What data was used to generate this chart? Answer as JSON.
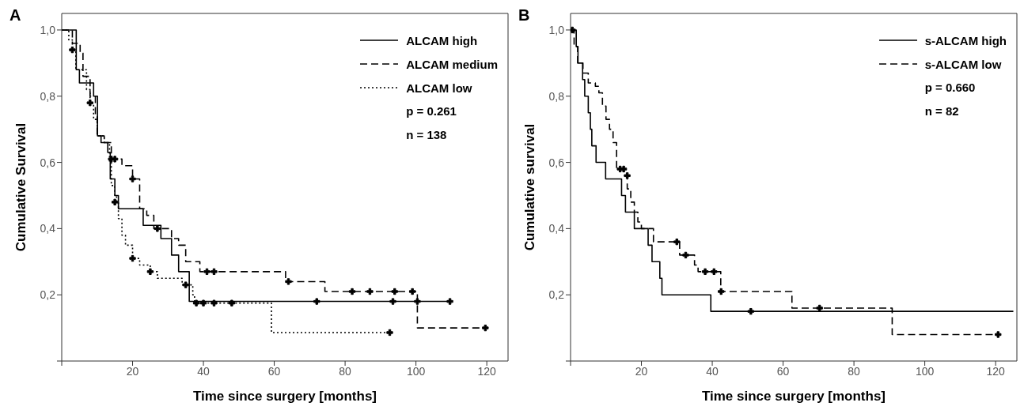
{
  "chart_data": [
    {
      "type": "step",
      "title": "A",
      "xlabel": "Time since surgery [months]",
      "ylabel": "Cumulative Survival",
      "xlim": [
        0,
        126
      ],
      "xticks": [
        {
          "value": 0,
          "label": null
        },
        20,
        40,
        60,
        80,
        100,
        120
      ],
      "ylim": [
        0,
        1.05
      ],
      "yticks": [
        {
          "value": 0,
          "label": null
        },
        {
          "value": 0.2,
          "label": "0,2"
        },
        {
          "value": 0.4,
          "label": "0,4"
        },
        {
          "value": 0.6,
          "label": "0,6"
        },
        {
          "value": 0.8,
          "label": "0,8"
        },
        {
          "value": 1,
          "label": "1,0"
        }
      ],
      "legend": "top right",
      "annotations": [
        "p = 0.261",
        "n = 138"
      ],
      "series": [
        {
          "name": "ALCAM high",
          "color": "#000000",
          "line_style": "solid",
          "x": [
            0,
            4.1,
            5,
            9,
            10.1,
            11.1,
            13,
            13.7,
            15,
            16,
            23,
            28,
            31,
            33,
            36,
            109.6
          ],
          "values": [
            1.0,
            0.88,
            0.84,
            0.8,
            0.68,
            0.66,
            0.63,
            0.55,
            0.5,
            0.46,
            0.41,
            0.37,
            0.32,
            0.27,
            0.18,
            0.18
          ]
        },
        {
          "name": "ALCAM medium",
          "color": "#000000",
          "line_style": "dashed",
          "x": [
            0,
            3,
            5.2,
            6,
            8,
            9.5,
            10,
            12,
            14,
            17,
            20,
            22,
            24,
            26,
            31,
            33,
            35,
            39,
            63.2,
            74.3,
            100.4,
            119.6
          ],
          "values": [
            1.0,
            0.96,
            0.93,
            0.86,
            0.8,
            0.74,
            0.68,
            0.66,
            0.61,
            0.59,
            0.55,
            0.46,
            0.44,
            0.4,
            0.37,
            0.35,
            0.3,
            0.27,
            0.24,
            0.21,
            0.1,
            0.1
          ]
        },
        {
          "name": "ALCAM low",
          "color": "#000000",
          "line_style": "dotted",
          "x": [
            0,
            2,
            3,
            4,
            7,
            8,
            9,
            10,
            12,
            13.5,
            14,
            15,
            15.5,
            16,
            17,
            18,
            20,
            22,
            25,
            27,
            34,
            37,
            37.5,
            59.2,
            92.6
          ],
          "values": [
            1.0,
            0.97,
            0.94,
            0.88,
            0.82,
            0.78,
            0.73,
            0.68,
            0.66,
            0.6,
            0.53,
            0.5,
            0.48,
            0.43,
            0.38,
            0.35,
            0.31,
            0.29,
            0.27,
            0.25,
            0.23,
            0.2,
            0.175,
            0.086,
            0.086
          ]
        },
        {
          "type": "scatter",
          "marker": "cross",
          "color": "#000000",
          "x": [
            72,
            93.5,
            100.4,
            109.6,
            14,
            15,
            20,
            27,
            41,
            43,
            64,
            82,
            87,
            94,
            99,
            119.6,
            3,
            8,
            15,
            20,
            25,
            35,
            38,
            40,
            43,
            48,
            92.6
          ],
          "values": [
            0.18,
            0.18,
            0.18,
            0.18,
            0.61,
            0.61,
            0.55,
            0.4,
            0.27,
            0.27,
            0.24,
            0.21,
            0.21,
            0.21,
            0.21,
            0.1,
            0.94,
            0.78,
            0.48,
            0.31,
            0.27,
            0.23,
            0.175,
            0.175,
            0.175,
            0.175,
            0.086
          ]
        }
      ]
    },
    {
      "type": "step",
      "title": "B",
      "xlabel": "Time since surgery [months]",
      "ylabel": "Cumulative survival",
      "xlim": [
        0,
        126
      ],
      "xticks": [
        {
          "value": 0,
          "label": null
        },
        20,
        40,
        60,
        80,
        100,
        120
      ],
      "ylim": [
        0,
        1.05
      ],
      "yticks": [
        {
          "value": 0,
          "label": null
        },
        {
          "value": 0.2,
          "label": "0,2"
        },
        {
          "value": 0.4,
          "label": "0,4"
        },
        {
          "value": 0.6,
          "label": "0,6"
        },
        {
          "value": 0.8,
          "label": "0,8"
        },
        {
          "value": 1,
          "label": "1,0"
        }
      ],
      "legend": "top right",
      "annotations": [
        "p = 0.660",
        "n = 82"
      ],
      "series": [
        {
          "name": "s-ALCAM high",
          "color": "#000000",
          "line_style": "solid",
          "x": [
            0,
            1.6,
            2.1,
            3.4,
            4,
            5,
            5.6,
            6,
            7.2,
            9.9,
            14.4,
            15.5,
            18,
            21.9,
            23,
            25.2,
            25.8,
            39.6,
            125
          ],
          "values": [
            1.0,
            0.95,
            0.9,
            0.85,
            0.8,
            0.75,
            0.7,
            0.65,
            0.6,
            0.55,
            0.5,
            0.45,
            0.4,
            0.35,
            0.3,
            0.25,
            0.2,
            0.15,
            0.15
          ]
        },
        {
          "name": "s-ALCAM low",
          "color": "#000000",
          "line_style": "dashed",
          "x": [
            0,
            1,
            2,
            3.5,
            5,
            7,
            8,
            9,
            10,
            11,
            12,
            13,
            15,
            16,
            17,
            18,
            19,
            20,
            23.4,
            30.8,
            35,
            36,
            42.4,
            62.5,
            90.8,
            120.7
          ],
          "values": [
            1.0,
            0.95,
            0.9,
            0.87,
            0.84,
            0.83,
            0.81,
            0.77,
            0.73,
            0.7,
            0.66,
            0.58,
            0.56,
            0.52,
            0.48,
            0.45,
            0.42,
            0.4,
            0.36,
            0.32,
            0.29,
            0.27,
            0.21,
            0.16,
            0.08,
            0.08
          ]
        },
        {
          "type": "scatter",
          "marker": "cross",
          "color": "#000000",
          "x": [
            50.9,
            0.5,
            14,
            15,
            16,
            30,
            32.5,
            38,
            40.5,
            42.5,
            70.3,
            120.7
          ],
          "values": [
            0.15,
            1.0,
            0.58,
            0.58,
            0.56,
            0.36,
            0.32,
            0.27,
            0.27,
            0.21,
            0.16,
            0.08
          ]
        }
      ]
    }
  ]
}
